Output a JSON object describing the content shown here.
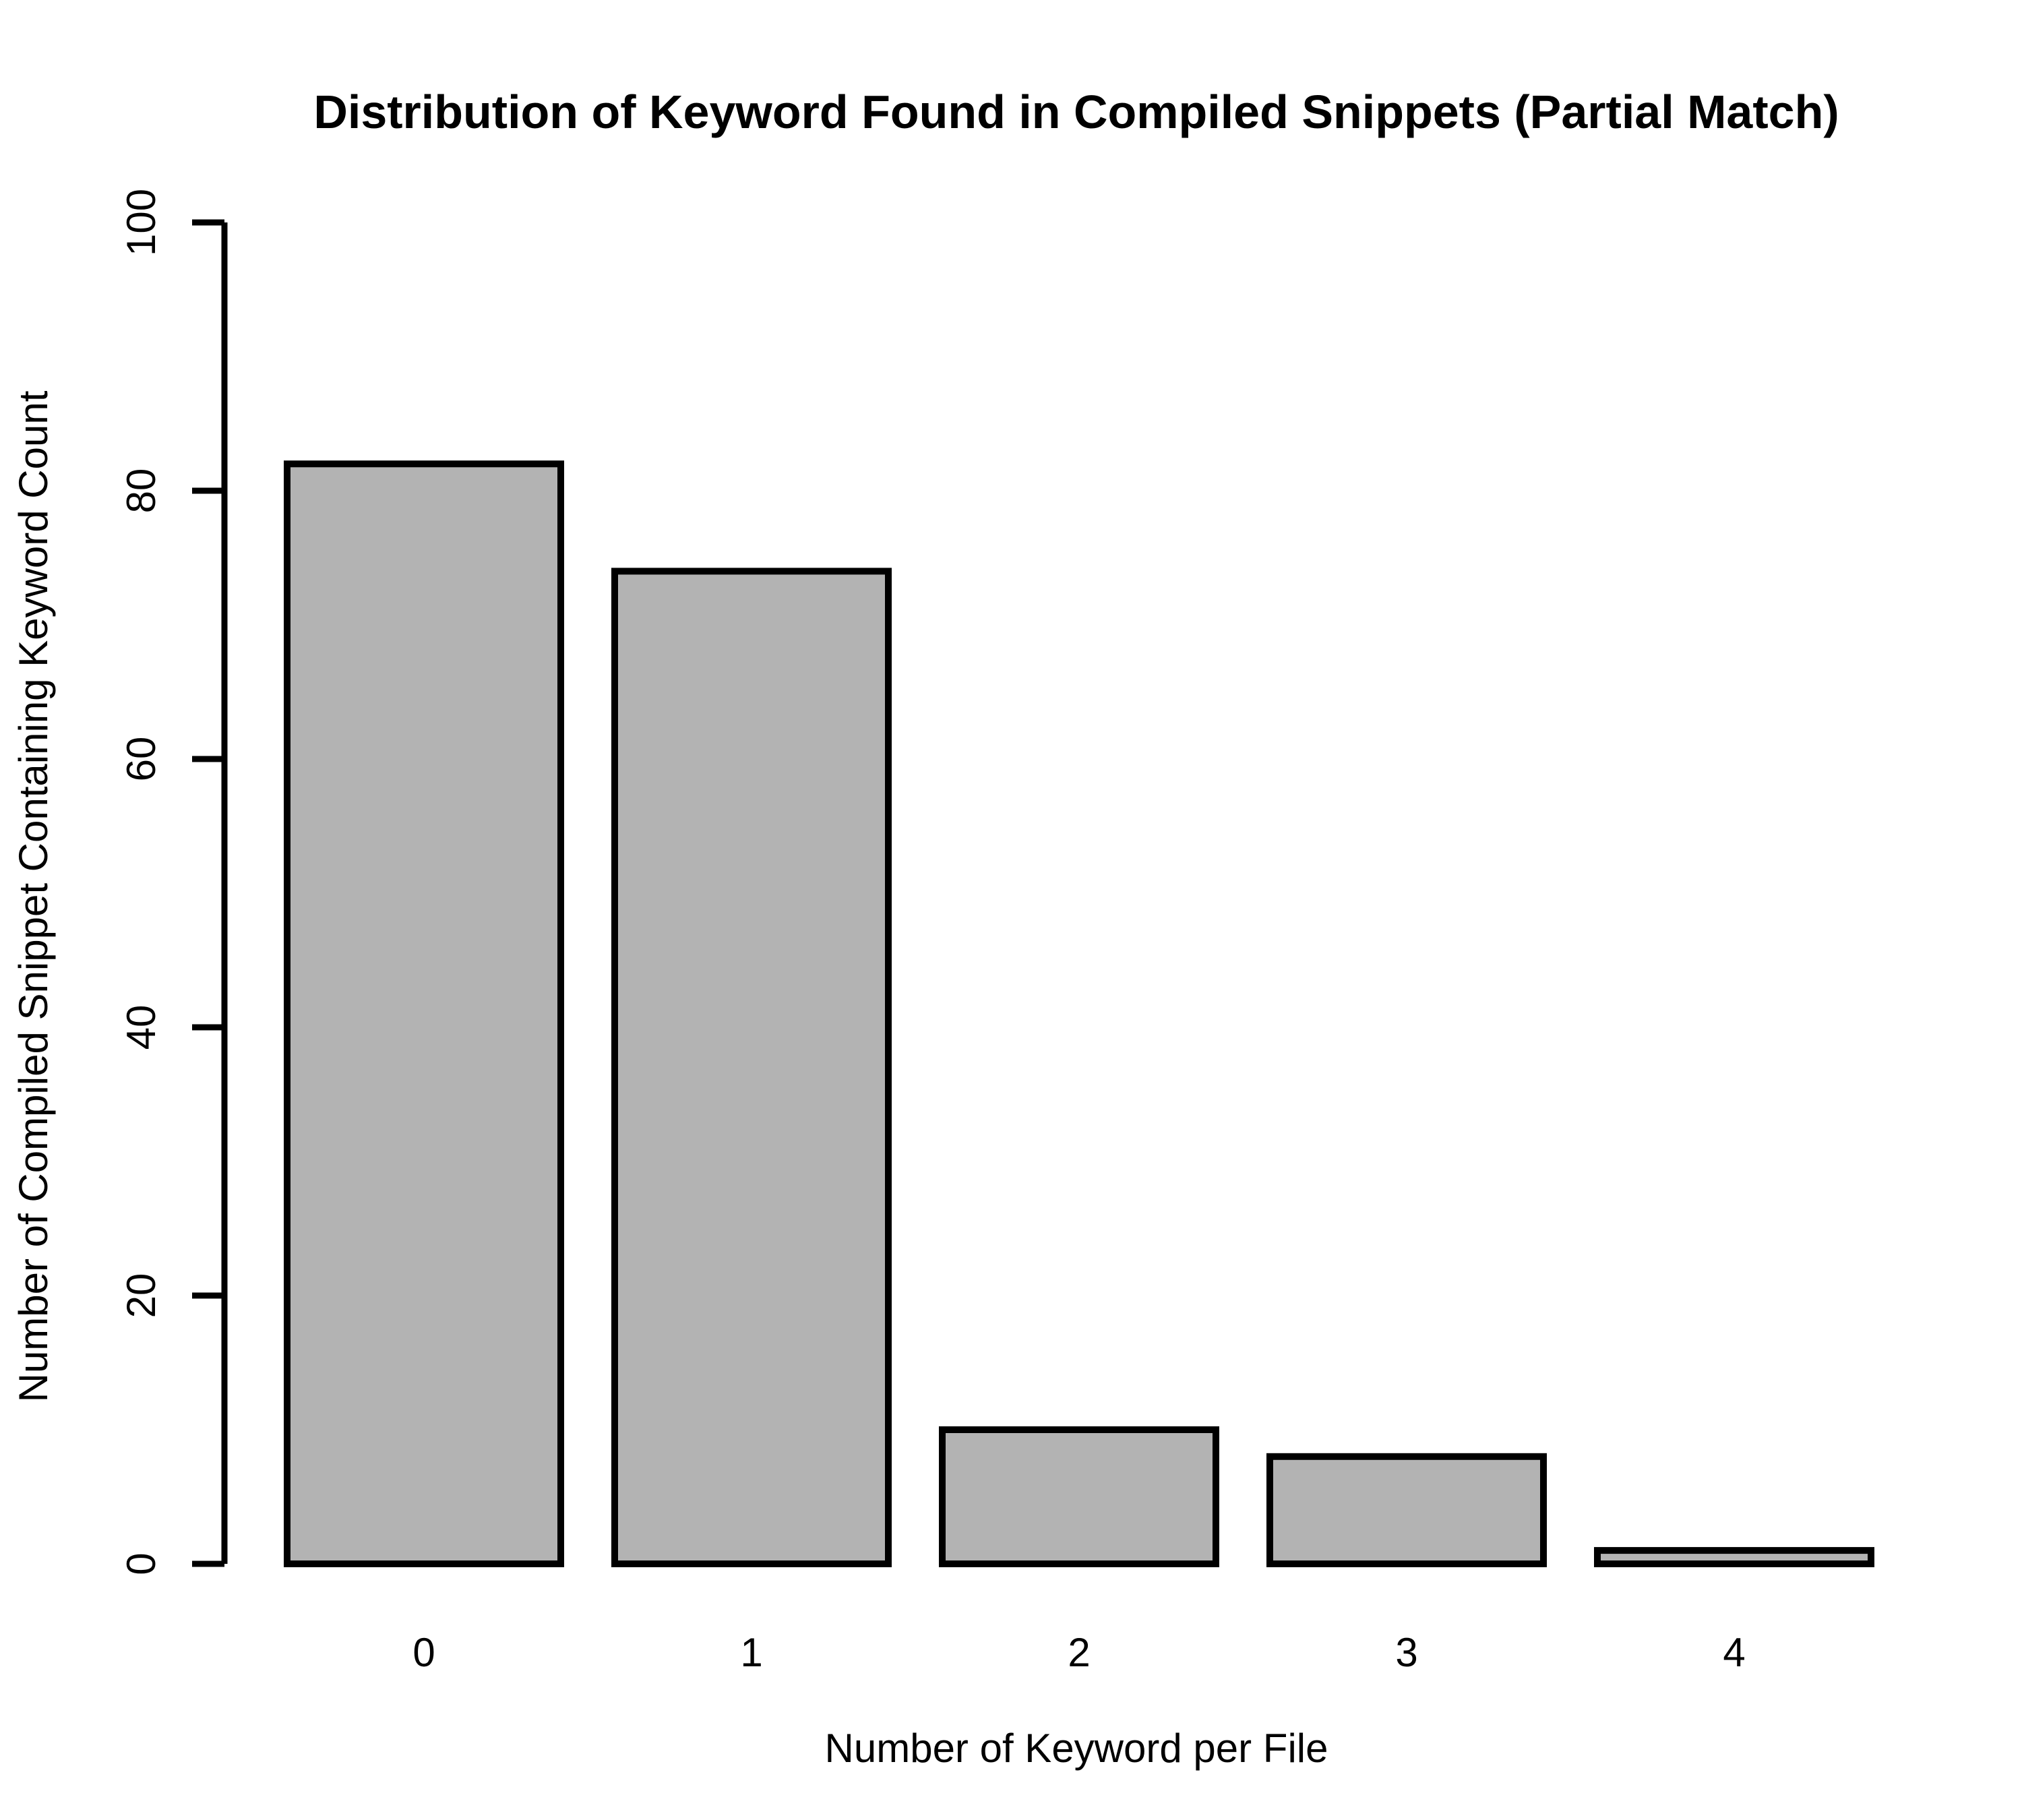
{
  "chart_data": {
    "type": "bar",
    "title": "Distribution of Keyword Found in Compiled Snippets (Partial Match)",
    "xlabel": "Number of Keyword per File",
    "ylabel": "Number of Compiled Snippet Containing Keyword Count",
    "categories": [
      "0",
      "1",
      "2",
      "3",
      "4"
    ],
    "values": [
      82,
      74,
      10,
      8,
      1
    ],
    "ylim": [
      0,
      100
    ],
    "yticks": [
      "0",
      "20",
      "40",
      "60",
      "80",
      "100"
    ],
    "grid": false,
    "legend": "none",
    "colors": {
      "bar_fill": "#b3b3b3",
      "bar_stroke": "#000000"
    }
  }
}
